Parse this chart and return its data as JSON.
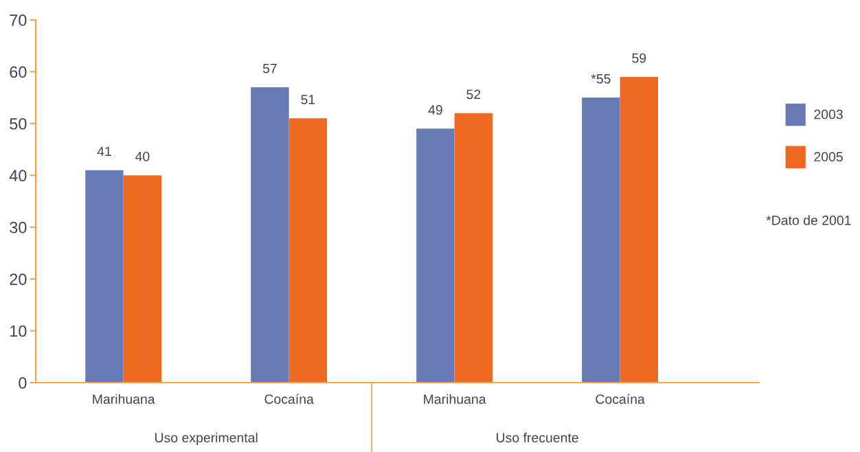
{
  "chart_data": {
    "type": "bar",
    "categories": [
      "Marihuana",
      "Cocaína",
      "Marihuana",
      "Cocaína"
    ],
    "series": [
      {
        "name": "2003",
        "color": "#6a7ab4",
        "values": [
          41,
          57,
          49,
          55
        ],
        "value_labels": [
          "41",
          "57",
          "49",
          "*55"
        ]
      },
      {
        "name": "2005",
        "color": "#ee6a22",
        "values": [
          40,
          51,
          52,
          59
        ],
        "value_labels": [
          "40",
          "51",
          "52",
          "59"
        ]
      }
    ],
    "ylim": [
      0,
      70
    ],
    "yticks": [
      0,
      10,
      20,
      30,
      40,
      50,
      60,
      70
    ],
    "grid": false,
    "legend": "right",
    "annotations": [
      "Uso experimental",
      "Uso frecuente",
      "*Dato de 2001"
    ]
  }
}
